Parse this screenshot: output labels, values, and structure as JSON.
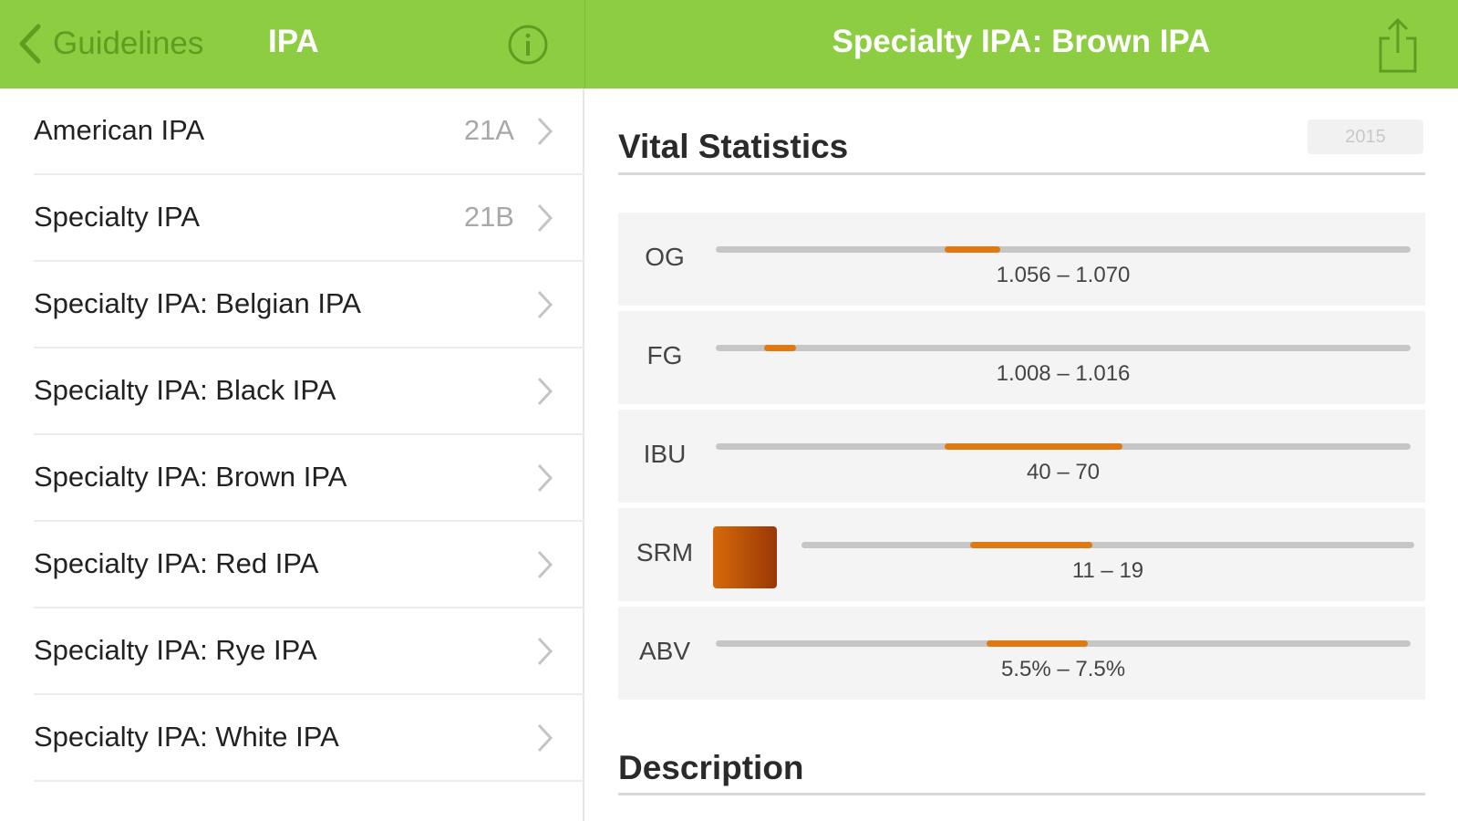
{
  "header": {
    "back_label": "Guidelines",
    "list_title": "IPA",
    "detail_title": "Specialty IPA: Brown IPA",
    "bar_color": "#8ccd41"
  },
  "list": {
    "items": [
      {
        "name": "American IPA",
        "code": "21A"
      },
      {
        "name": "Specialty IPA",
        "code": "21B"
      },
      {
        "name": "Specialty IPA: Belgian IPA",
        "code": ""
      },
      {
        "name": "Specialty IPA: Black IPA",
        "code": ""
      },
      {
        "name": "Specialty IPA: Brown IPA",
        "code": ""
      },
      {
        "name": "Specialty IPA: Red IPA",
        "code": ""
      },
      {
        "name": "Specialty IPA: Rye IPA",
        "code": ""
      },
      {
        "name": "Specialty IPA: White IPA",
        "code": ""
      }
    ]
  },
  "detail": {
    "vital_title": "Vital Statistics",
    "year": "2015",
    "description_title": "Description",
    "stats": [
      {
        "label": "OG",
        "range": "1.056 – 1.070",
        "fill_start": 0.33,
        "fill_end": 0.41
      },
      {
        "label": "FG",
        "range": "1.008 – 1.016",
        "fill_start": 0.07,
        "fill_end": 0.115
      },
      {
        "label": "IBU",
        "range": "40 – 70",
        "fill_start": 0.33,
        "fill_end": 0.585
      },
      {
        "label": "SRM",
        "range": "11 – 19",
        "fill_start": 0.275,
        "fill_end": 0.475
      },
      {
        "label": "ABV",
        "range": "5.5% – 7.5%",
        "fill_start": 0.39,
        "fill_end": 0.535
      }
    ],
    "accent_color": "#e07a10"
  }
}
